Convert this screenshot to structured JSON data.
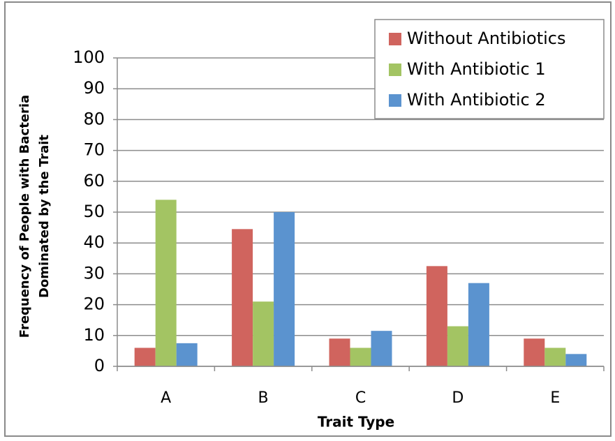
{
  "chart_data": {
    "type": "bar",
    "ylabel": [
      "Frequency of People with Bacteria",
      "Dominated by the Trait"
    ],
    "xlabel": "Trait Type",
    "categories": [
      "A",
      "B",
      "C",
      "D",
      "E"
    ],
    "series": [
      {
        "name": "Without Antibiotics",
        "color": "#d0645e",
        "values": [
          6,
          44.5,
          9,
          32.5,
          9
        ]
      },
      {
        "name": "With Antibiotic 1",
        "color": "#a3c463",
        "values": [
          54,
          21,
          6,
          13,
          6
        ]
      },
      {
        "name": "With Antibiotic 2",
        "color": "#5b93cf",
        "values": [
          7.5,
          50,
          11.5,
          27,
          4
        ]
      }
    ],
    "ylim": [
      0,
      100
    ],
    "yticks": [
      0,
      10,
      20,
      30,
      40,
      50,
      60,
      70,
      80,
      90,
      100
    ],
    "grid": true,
    "legend": "top-right"
  }
}
